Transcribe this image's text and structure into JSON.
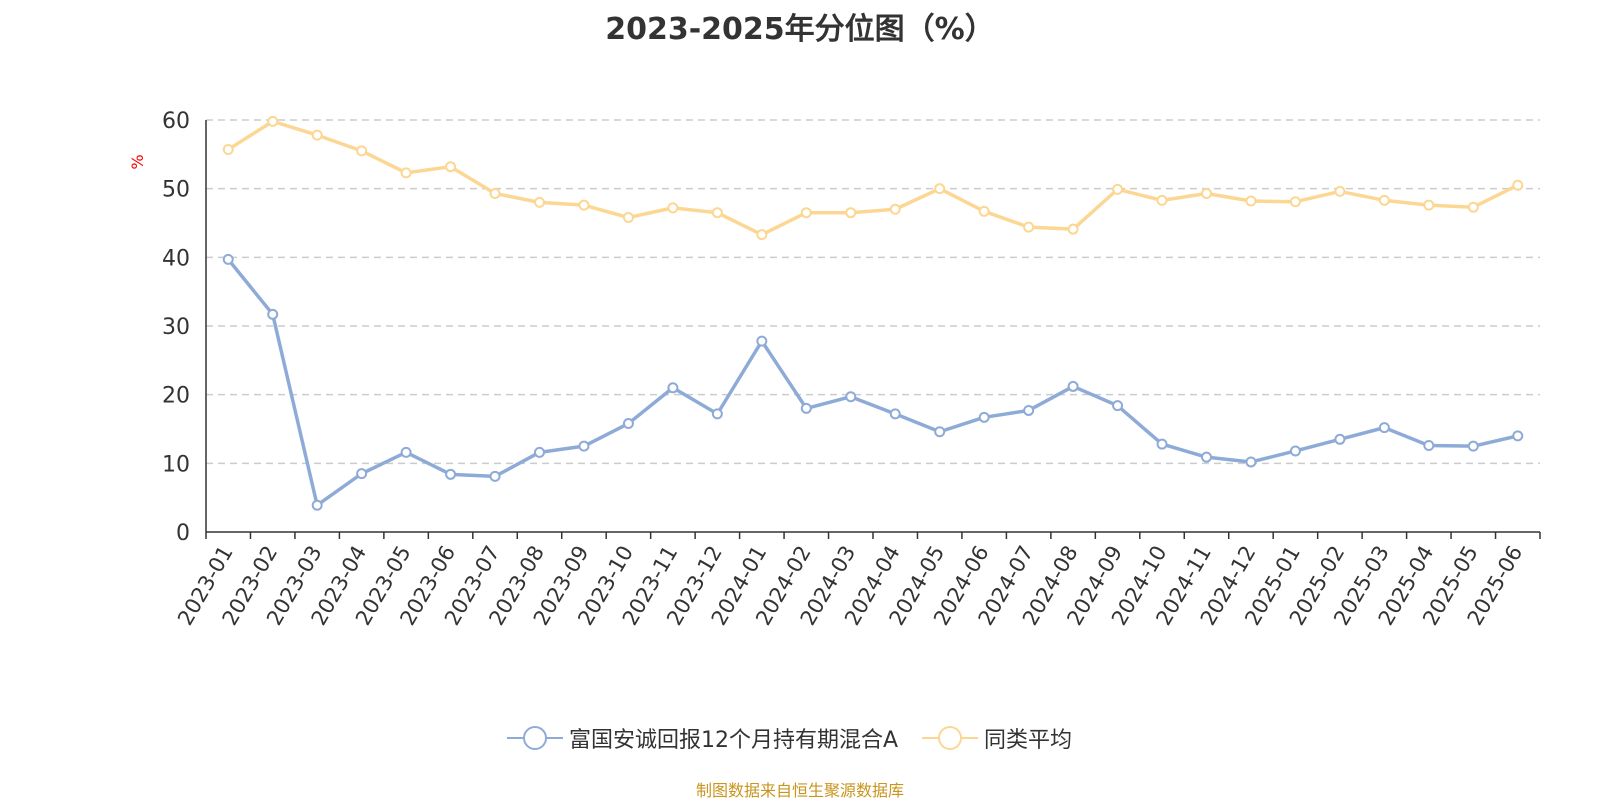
{
  "chart_data": {
    "type": "line",
    "title": "2023-2025年分位图（%）",
    "ylabel": "%",
    "xlabel": "",
    "ylim": [
      0,
      60
    ],
    "yticks": [
      0,
      10,
      20,
      30,
      40,
      50,
      60
    ],
    "grid": true,
    "legend_position": "bottom",
    "categories": [
      "2023-01",
      "2023-02",
      "2023-03",
      "2023-04",
      "2023-05",
      "2023-06",
      "2023-07",
      "2023-08",
      "2023-09",
      "2023-10",
      "2023-11",
      "2023-12",
      "2024-01",
      "2024-02",
      "2024-03",
      "2024-04",
      "2024-05",
      "2024-06",
      "2024-07",
      "2024-08",
      "2024-09",
      "2024-10",
      "2024-11",
      "2024-12",
      "2025-01",
      "2025-02",
      "2025-03",
      "2025-04",
      "2025-05",
      "2025-06"
    ],
    "series": [
      {
        "name": "富国安诚回报12个月持有期混合A",
        "color": "#8eabd8",
        "values": [
          39.7,
          31.7,
          3.9,
          8.5,
          11.6,
          8.4,
          8.1,
          11.6,
          12.5,
          15.8,
          21.0,
          17.2,
          27.8,
          18.0,
          19.7,
          17.2,
          14.6,
          16.7,
          17.7,
          21.2,
          18.4,
          12.8,
          10.9,
          10.2,
          11.8,
          13.5,
          15.2,
          12.6,
          12.5,
          14.0
        ]
      },
      {
        "name": "同类平均",
        "color": "#fcd793",
        "values": [
          55.7,
          59.8,
          57.8,
          55.5,
          52.3,
          53.2,
          49.3,
          48.0,
          47.6,
          45.8,
          47.2,
          46.5,
          43.3,
          46.5,
          46.5,
          47.0,
          50.0,
          46.7,
          44.4,
          44.1,
          49.9,
          48.3,
          49.3,
          48.2,
          48.1,
          49.6,
          48.3,
          47.6,
          47.3,
          50.5
        ]
      }
    ]
  },
  "footer": {
    "source": "制图数据来自恒生聚源数据库"
  },
  "colors": {
    "axis": "#333333",
    "grid": "#cccccc",
    "ylabel": "#ff0000",
    "source": "#c8951e"
  }
}
